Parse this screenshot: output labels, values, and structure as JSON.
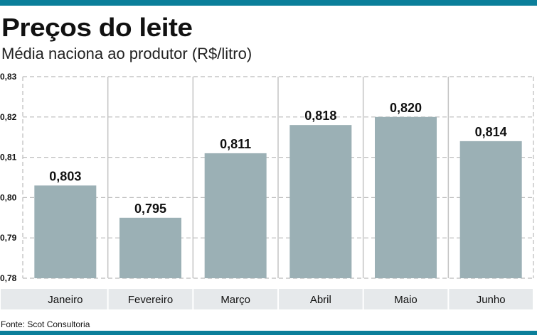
{
  "header": {
    "title": "Preços do leite",
    "subtitle": "Média naciona ao produtor (R$/litro)"
  },
  "footer": {
    "source": "Fonte: Scot Consultoria"
  },
  "colors": {
    "accent": "#0b7f9a",
    "bar": "#9bb0b5",
    "label_bg": "#e6e9eb"
  },
  "chart_data": {
    "type": "bar",
    "title": "Preços do leite",
    "subtitle": "Média naciona ao produtor (R$/litro)",
    "categories": [
      "Janeiro",
      "Fevereiro",
      "Março",
      "Abril",
      "Maio",
      "Junho"
    ],
    "values": [
      0.803,
      0.795,
      0.811,
      0.818,
      0.82,
      0.814
    ],
    "value_labels": [
      "0,803",
      "0,795",
      "0,811",
      "0,818",
      "0,820",
      "0,814"
    ],
    "yticks": [
      0.78,
      0.79,
      0.8,
      0.81,
      0.82,
      0.83
    ],
    "ytick_labels": [
      "0,78",
      "0,79",
      "0,80",
      "0,81",
      "0,82",
      "0,83"
    ],
    "ylim": [
      0.78,
      0.83
    ],
    "xlabel": "",
    "ylabel": "",
    "grid": true
  }
}
